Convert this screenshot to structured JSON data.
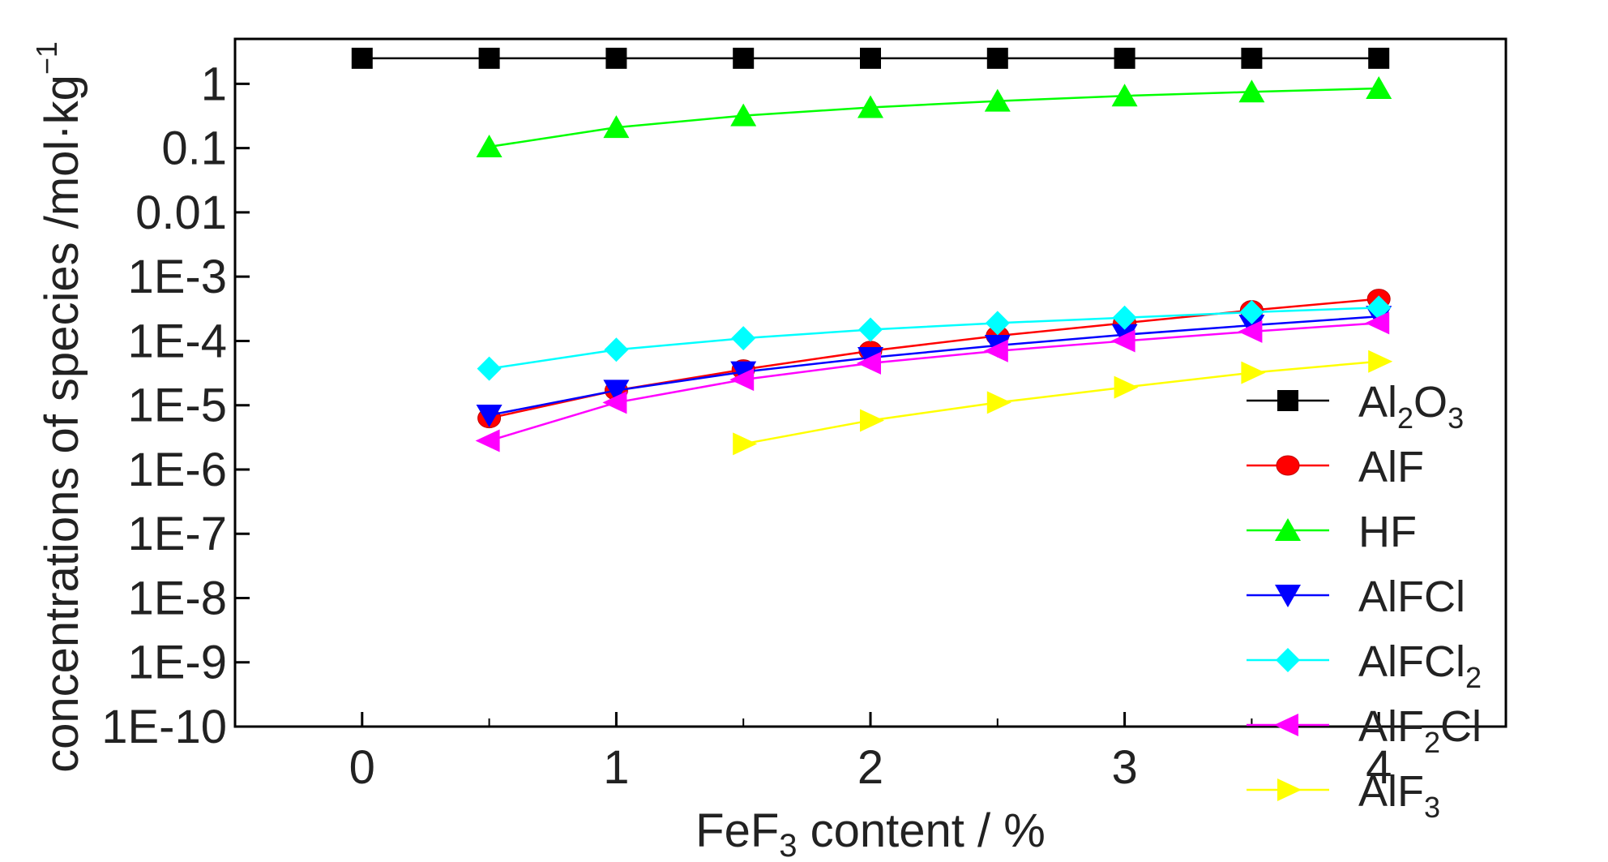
{
  "chart_data": {
    "type": "line",
    "y_scale": "log",
    "grid": false,
    "legend_position": "right",
    "xlabel": {
      "prefix": "FeF",
      "sub": "3",
      "suffix": " content / %"
    },
    "ylabel": "concentrations of species /mol·kg",
    "ylabel_sup": "−1",
    "xlim": [
      -0.5,
      4.5
    ],
    "ylim": [
      1e-10,
      5
    ],
    "x_ticks": [
      0,
      1,
      2,
      3,
      4
    ],
    "x_tick_labels": [
      "0",
      "1",
      "2",
      "3",
      "4"
    ],
    "y_ticks": [
      1,
      0.1,
      0.01,
      0.001,
      0.0001,
      1e-05,
      1e-06,
      1e-07,
      1e-08,
      1e-09,
      1e-10
    ],
    "y_tick_labels": [
      "1",
      "0.1",
      "0.01",
      "1E-3",
      "1E-4",
      "1E-5",
      "1E-6",
      "1E-7",
      "1E-8",
      "1E-9",
      "1E-10"
    ],
    "series": [
      {
        "name": "Al2O3",
        "label_parts": [
          {
            "t": "Al"
          },
          {
            "t": "2",
            "sub": true
          },
          {
            "t": "O"
          },
          {
            "t": "3",
            "sub": true
          }
        ],
        "color": "#000000",
        "marker": "square",
        "x": [
          0,
          0.5,
          1,
          1.5,
          2,
          2.5,
          3,
          3.5,
          4
        ],
        "y": [
          2.5,
          2.5,
          2.5,
          2.5,
          2.5,
          2.5,
          2.5,
          2.5,
          2.5
        ]
      },
      {
        "name": "AlF",
        "label_parts": [
          {
            "t": "AlF"
          }
        ],
        "color": "#ff0000",
        "marker": "circle",
        "x": [
          0.5,
          1,
          1.5,
          2,
          2.5,
          3,
          3.5,
          4
        ],
        "y": [
          6.3e-06,
          1.7e-05,
          3.6e-05,
          7e-05,
          0.00012,
          0.00019,
          0.0003,
          0.00045
        ]
      },
      {
        "name": "HF",
        "label_parts": [
          {
            "t": "HF"
          }
        ],
        "color": "#00ff00",
        "marker": "triangle-up",
        "x": [
          0.5,
          1,
          1.5,
          2,
          2.5,
          3,
          3.5,
          4
        ],
        "y": [
          0.105,
          0.21,
          0.32,
          0.43,
          0.54,
          0.65,
          0.75,
          0.85
        ]
      },
      {
        "name": "AlFCl",
        "label_parts": [
          {
            "t": "AlFCl"
          }
        ],
        "color": "#0000ff",
        "marker": "triangle-down",
        "x": [
          0.5,
          1,
          1.5,
          2,
          2.5,
          3,
          3.5,
          4
        ],
        "y": [
          7e-06,
          1.7e-05,
          3.3e-05,
          5.5e-05,
          8.5e-05,
          0.000125,
          0.000175,
          0.00024
        ]
      },
      {
        "name": "AlFCl2",
        "label_parts": [
          {
            "t": "AlFCl"
          },
          {
            "t": "2",
            "sub": true
          }
        ],
        "color": "#00ffff",
        "marker": "diamond",
        "x": [
          0.5,
          1,
          1.5,
          2,
          2.5,
          3,
          3.5,
          4
        ],
        "y": [
          3.7e-05,
          7.3e-05,
          0.00011,
          0.00015,
          0.00019,
          0.00023,
          0.00028,
          0.00033
        ]
      },
      {
        "name": "AlF2Cl",
        "label_parts": [
          {
            "t": "AlF"
          },
          {
            "t": "2",
            "sub": true
          },
          {
            "t": "Cl"
          }
        ],
        "color": "#ff00ff",
        "marker": "triangle-left",
        "x": [
          0.5,
          1,
          1.5,
          2,
          2.5,
          3,
          3.5,
          4
        ],
        "y": [
          2.8e-06,
          1.1e-05,
          2.5e-05,
          4.5e-05,
          7e-05,
          0.0001,
          0.00014,
          0.00019
        ]
      },
      {
        "name": "AlF3",
        "label_parts": [
          {
            "t": "AlF"
          },
          {
            "t": "3",
            "sub": true
          }
        ],
        "color": "#ffff00",
        "marker": "triangle-right",
        "x": [
          1.5,
          2,
          2.5,
          3,
          3.5,
          4
        ],
        "y": [
          2.5e-06,
          5.8e-06,
          1.1e-05,
          1.9e-05,
          3.2e-05,
          4.8e-05
        ]
      }
    ]
  }
}
